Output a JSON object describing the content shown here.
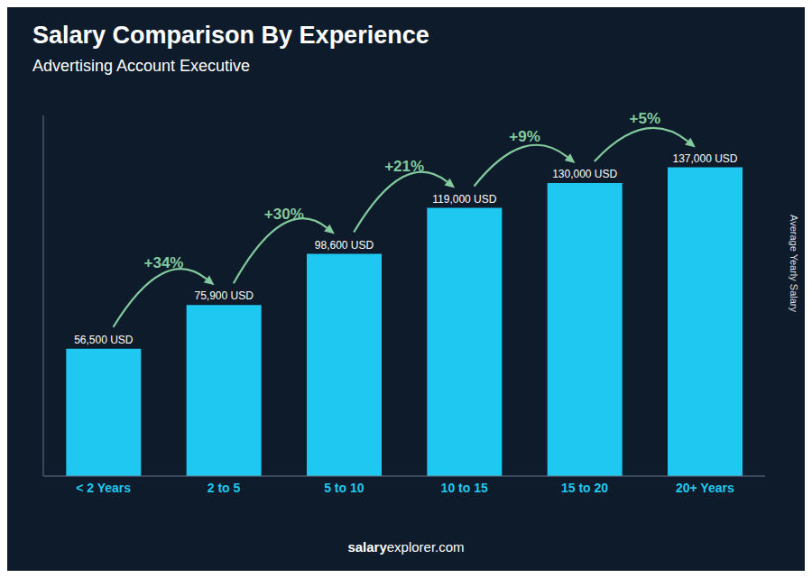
{
  "chart_data": {
    "type": "bar",
    "title": "Salary Comparison By Experience",
    "subtitle": "Advertising Account Executive",
    "ylabel": "Average Yearly Salary",
    "categories": [
      "< 2 Years",
      "2 to 5",
      "5 to 10",
      "10 to 15",
      "15 to 20",
      "20+ Years"
    ],
    "values": [
      56500,
      75900,
      98600,
      119000,
      130000,
      137000
    ],
    "value_labels": [
      "56,500 USD",
      "75,900 USD",
      "98,600 USD",
      "119,000 USD",
      "130,000 USD",
      "137,000 USD"
    ],
    "data_labels": true,
    "color": "#1fc8f0",
    "ylim": [
      0,
      160000
    ],
    "tick_labels": "x",
    "grid": false,
    "annotations": [
      "+34%",
      "+30%",
      "+21%",
      "+9%",
      "+5%"
    ],
    "footer": [
      "salary",
      "explorer.com"
    ]
  }
}
